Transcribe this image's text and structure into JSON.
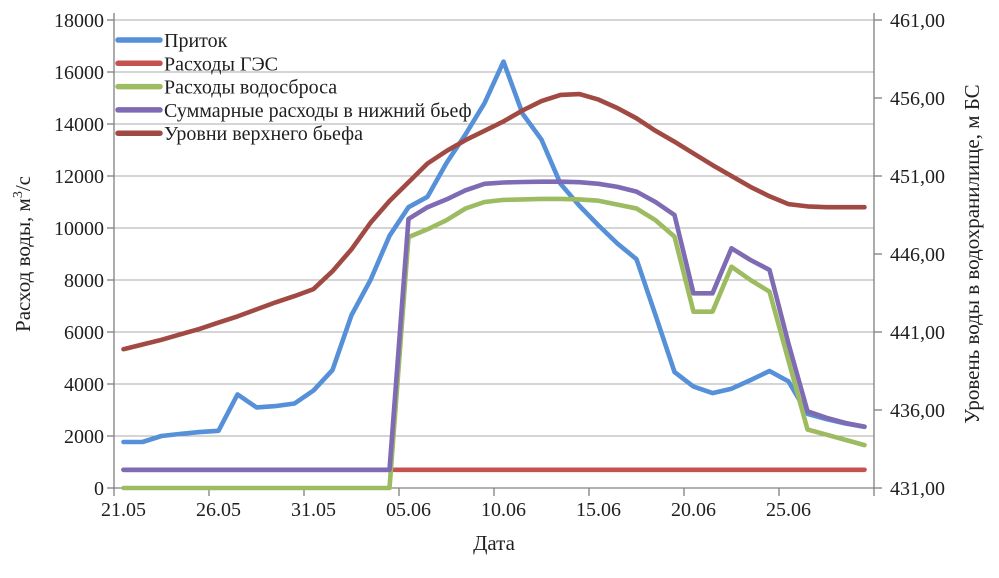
{
  "chart_data": {
    "type": "line",
    "x_label": "Дата",
    "y_left_label": {
      "pre": "Расход воды, м",
      "sup": "3",
      "post": "/с"
    },
    "y_right_label": "Уровень воды в водохранилище,  м БС",
    "y_left_range": [
      0,
      18000
    ],
    "y_left_step": 2000,
    "y_right_range": [
      431,
      461
    ],
    "y_right_step": 5,
    "grid": "horizontal",
    "legend_position": "top-left-inside",
    "y_left_ticks": [
      "0",
      "2000",
      "4000",
      "6000",
      "8000",
      "10000",
      "12000",
      "14000",
      "16000",
      "18000"
    ],
    "y_right_ticks": [
      "431,00",
      "436,00",
      "441,00",
      "446,00",
      "451,00",
      "456,00",
      "461,00"
    ],
    "x_tick_labels": [
      "21.05",
      "26.05",
      "31.05",
      "05.06",
      "10.06",
      "15.06",
      "20.06",
      "25.06"
    ],
    "x_dates": [
      "21.05",
      "22.05",
      "23.05",
      "24.05",
      "25.05",
      "26.05",
      "27.05",
      "28.05",
      "29.05",
      "30.05",
      "31.05",
      "01.06",
      "02.06",
      "03.06",
      "04.06",
      "05.06",
      "06.06",
      "07.06",
      "08.06",
      "09.06",
      "10.06",
      "11.06",
      "12.06",
      "13.06",
      "14.06",
      "15.06",
      "16.06",
      "17.06",
      "18.06",
      "19.06",
      "20.06",
      "21.06",
      "22.06",
      "23.06",
      "24.06",
      "25.06",
      "26.06",
      "27.06",
      "28.06",
      "29.06"
    ],
    "series": [
      {
        "name": "Приток",
        "axis": "left",
        "color": "#5590D8",
        "values": [
          1770,
          1770,
          2000,
          2080,
          2150,
          2200,
          3600,
          3100,
          3150,
          3250,
          3750,
          4540,
          6650,
          8000,
          9700,
          10800,
          11200,
          12500,
          13600,
          14800,
          16400,
          14400,
          13400,
          11700,
          10850,
          10100,
          9400,
          8800,
          6650,
          4460,
          3900,
          3650,
          3820,
          4150,
          4500,
          4100,
          2850,
          2650,
          2480,
          2350
        ]
      },
      {
        "name": "Расходы ГЭС",
        "axis": "left",
        "color": "#C5524E",
        "values": [
          700,
          700,
          700,
          700,
          700,
          700,
          700,
          700,
          700,
          700,
          700,
          700,
          700,
          700,
          700,
          700,
          700,
          700,
          700,
          700,
          700,
          700,
          700,
          700,
          700,
          700,
          700,
          700,
          700,
          700,
          700,
          700,
          700,
          700,
          700,
          700,
          700,
          700,
          700,
          700
        ]
      },
      {
        "name": "Расходы водосброса",
        "axis": "left",
        "color": "#9DBB61",
        "values": [
          0,
          0,
          0,
          0,
          0,
          0,
          0,
          0,
          0,
          0,
          0,
          0,
          0,
          0,
          0,
          9650,
          9950,
          10300,
          10750,
          11000,
          11080,
          11100,
          11120,
          11120,
          11100,
          11050,
          10900,
          10750,
          10300,
          9670,
          6780,
          6780,
          8510,
          8000,
          7550,
          4900,
          2250,
          2050,
          1850,
          1650
        ]
      },
      {
        "name": "Суммарные расходы в нижний бьеф",
        "axis": "left",
        "color": "#7E6BB4",
        "values": [
          700,
          700,
          700,
          700,
          700,
          700,
          700,
          700,
          700,
          700,
          700,
          700,
          700,
          700,
          700,
          10350,
          10800,
          11100,
          11450,
          11700,
          11750,
          11770,
          11780,
          11780,
          11760,
          11700,
          11580,
          11400,
          11000,
          10500,
          7490,
          7490,
          9220,
          8770,
          8390,
          5550,
          2950,
          2700,
          2500,
          2360
        ]
      },
      {
        "name": "Уровни верхнего бьефа",
        "axis": "right",
        "color": "#A14A44",
        "values": [
          439.9,
          440.2,
          440.5,
          440.85,
          441.2,
          441.6,
          442.0,
          442.45,
          442.9,
          443.3,
          443.75,
          444.9,
          446.3,
          448.0,
          449.4,
          450.6,
          451.8,
          452.6,
          453.3,
          453.9,
          454.5,
          455.2,
          455.8,
          456.2,
          456.25,
          455.9,
          455.35,
          454.7,
          453.9,
          453.2,
          452.45,
          451.7,
          451.0,
          450.3,
          449.7,
          449.2,
          449.05,
          449.0,
          449.0,
          449.0
        ]
      }
    ],
    "colors": {
      "gridline": "#ABABAB",
      "axis_line": "#808080",
      "text": "#1f1f1f"
    }
  }
}
